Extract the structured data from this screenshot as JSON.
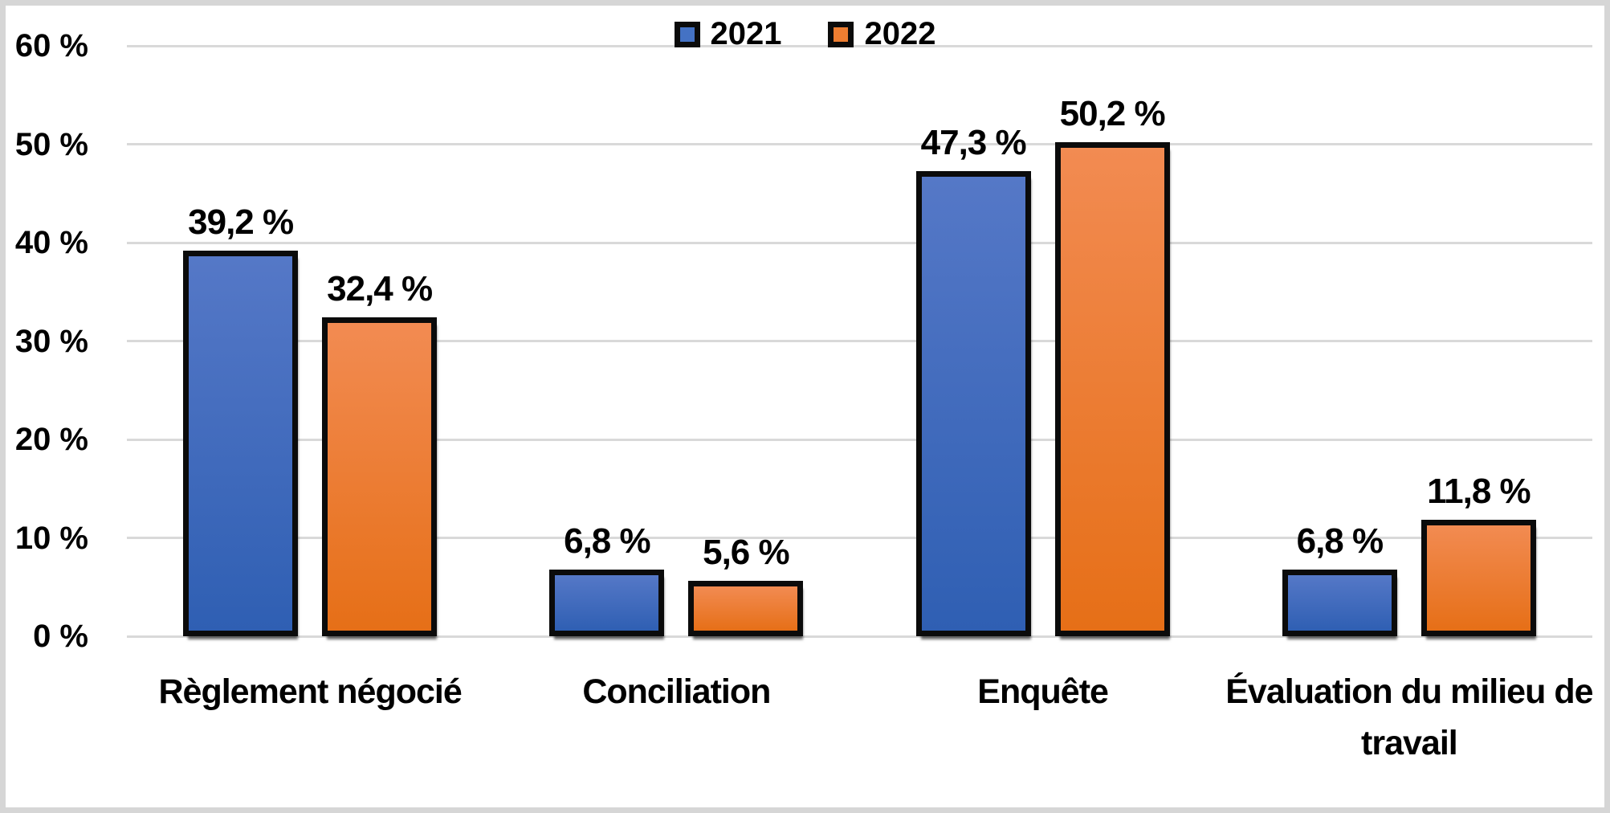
{
  "chart_data": {
    "type": "bar",
    "title": "",
    "xlabel": "",
    "ylabel": "",
    "categories": [
      "Règlement négocié",
      "Conciliation",
      "Enquête",
      "Évaluation du milieu de travail"
    ],
    "series": [
      {
        "name": "2021",
        "values": [
          39.2,
          6.8,
          47.3,
          6.8
        ],
        "value_labels": [
          "39,2 %",
          "6,8 %",
          "47,3 %",
          "6,8 %"
        ],
        "fill_top": "#5578C7",
        "fill_bottom": "#2F5FB3",
        "legend_color": "#4472C4"
      },
      {
        "name": "2022",
        "values": [
          32.4,
          5.6,
          50.2,
          11.8
        ],
        "value_labels": [
          "32,4 %",
          "5,6 %",
          "50,2 %",
          "11,8 %"
        ],
        "fill_top": "#F28B52",
        "fill_bottom": "#E66F17",
        "legend_color": "#ED7D31"
      }
    ],
    "ylim": [
      0,
      60
    ],
    "yticks": [
      {
        "value": 0,
        "label": "0 %"
      },
      {
        "value": 10,
        "label": "10 %"
      },
      {
        "value": 20,
        "label": "20 %"
      },
      {
        "value": 30,
        "label": "30 %"
      },
      {
        "value": 40,
        "label": "40 %"
      },
      {
        "value": 50,
        "label": "50 %"
      },
      {
        "value": 60,
        "label": "60 %"
      }
    ],
    "grid": true,
    "legend_position": "top-center",
    "colors": {
      "gridline": "#D9D9D9",
      "frame": "#D6D6D6",
      "bar_border": "#0B0B0B",
      "text": "#000000",
      "background": "#FFFFFF"
    }
  }
}
